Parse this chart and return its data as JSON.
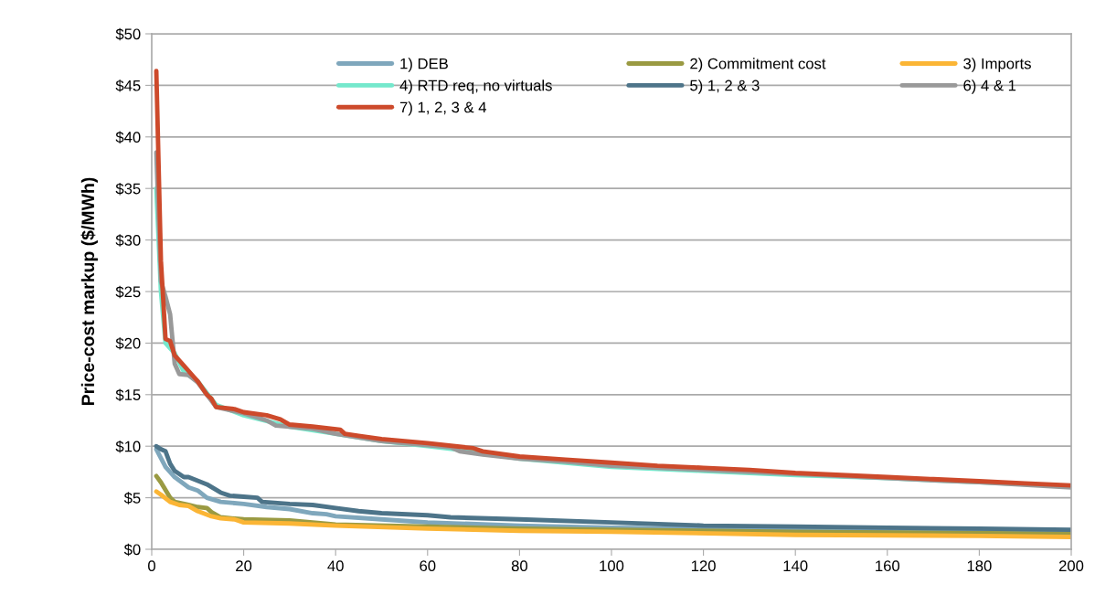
{
  "chart_data": {
    "type": "line",
    "ylabel": "Price-cost markup ($/MWh)",
    "xlim": [
      0,
      200
    ],
    "xticks": [
      0,
      20,
      40,
      60,
      80,
      100,
      120,
      140,
      160,
      180,
      200
    ],
    "ylim": [
      0,
      50
    ],
    "yticks": [
      {
        "value": 0,
        "label": "$0"
      },
      {
        "value": 5,
        "label": "$5"
      },
      {
        "value": 10,
        "label": "$10"
      },
      {
        "value": 15,
        "label": "$15"
      },
      {
        "value": 20,
        "label": "$20"
      },
      {
        "value": 25,
        "label": "$25"
      },
      {
        "value": 30,
        "label": "$30"
      },
      {
        "value": 35,
        "label": "$35"
      },
      {
        "value": 40,
        "label": "$40"
      },
      {
        "value": 45,
        "label": "$45"
      },
      {
        "value": 50,
        "label": "$50"
      }
    ],
    "grid": "y",
    "legend": "top",
    "marker": "none",
    "line_style": "solid",
    "series": [
      {
        "name": "1) DEB",
        "color": "#7fa7bc",
        "x": [
          1,
          3,
          5,
          8,
          10,
          12,
          15,
          20,
          25,
          30,
          35,
          38,
          40,
          50,
          60,
          80,
          100,
          120,
          140,
          160,
          180,
          200
        ],
        "values": [
          9.7,
          8.0,
          7.0,
          6.0,
          5.7,
          5.0,
          4.6,
          4.4,
          4.1,
          3.9,
          3.5,
          3.4,
          3.2,
          2.9,
          2.6,
          2.3,
          2.1,
          2.0,
          1.9,
          1.8,
          1.7,
          1.6
        ]
      },
      {
        "name": "2) Commitment cost",
        "color": "#9a9a42",
        "x": [
          1,
          2,
          4,
          5,
          8,
          10,
          12,
          13,
          15,
          20,
          30,
          40,
          60,
          80,
          100,
          140,
          200
        ],
        "values": [
          7.1,
          6.5,
          5.0,
          4.6,
          4.3,
          4.1,
          4.0,
          3.6,
          3.1,
          2.9,
          2.8,
          2.4,
          2.2,
          2.0,
          1.9,
          1.7,
          1.5
        ]
      },
      {
        "name": "3) Imports",
        "color": "#fbb535",
        "x": [
          1,
          2,
          4,
          6,
          8,
          10,
          13,
          15,
          18,
          20,
          30,
          40,
          60,
          80,
          100,
          140,
          180,
          200
        ],
        "values": [
          5.6,
          5.3,
          4.6,
          4.3,
          4.2,
          3.7,
          3.2,
          3.0,
          2.9,
          2.6,
          2.5,
          2.3,
          2.0,
          1.8,
          1.7,
          1.4,
          1.3,
          1.2
        ]
      },
      {
        "name": "4) RTD req, no virtuals",
        "color": "#74e8cc",
        "x": [
          1,
          2,
          3,
          5,
          7,
          10,
          14,
          20,
          30,
          40,
          50,
          60,
          70,
          80,
          90,
          100,
          120,
          140,
          160,
          180,
          200
        ],
        "values": [
          35,
          25,
          20,
          19,
          17.2,
          16.3,
          14,
          13,
          11.9,
          11.2,
          10.5,
          10,
          9.5,
          8.8,
          8.4,
          8.0,
          7.6,
          7.2,
          6.9,
          6.5,
          6.1
        ]
      },
      {
        "name": "5) 1, 2 & 3",
        "color": "#4d7489",
        "x": [
          1,
          2,
          3,
          4,
          5,
          7,
          8,
          12,
          15,
          17,
          20,
          23,
          24,
          30,
          35,
          40,
          45,
          50,
          60,
          65,
          80,
          100,
          120,
          140,
          160,
          180,
          200
        ],
        "values": [
          10,
          9.7,
          9.5,
          8.3,
          7.6,
          7.0,
          7.0,
          6.3,
          5.5,
          5.2,
          5.1,
          5.0,
          4.6,
          4.4,
          4.3,
          4.0,
          3.7,
          3.5,
          3.3,
          3.1,
          2.9,
          2.6,
          2.3,
          2.2,
          2.1,
          2.0,
          1.9
        ]
      },
      {
        "name": "6) 4 & 1",
        "color": "#999999",
        "x": [
          1,
          2,
          3,
          4,
          5,
          6,
          8,
          10,
          12,
          14,
          20,
          25,
          27,
          35,
          40,
          50,
          60,
          65,
          67,
          72,
          80,
          90,
          100,
          120,
          140,
          160,
          180,
          200
        ],
        "values": [
          38.5,
          26,
          24.5,
          22.8,
          18,
          17,
          16.9,
          16.2,
          15,
          13.8,
          13.2,
          12.5,
          12,
          11.7,
          11.2,
          10.5,
          10.1,
          9.9,
          9.5,
          9.2,
          8.8,
          8.5,
          8.1,
          7.7,
          7.3,
          6.9,
          6.5,
          6.0
        ]
      },
      {
        "name": "7) 1, 2, 3 & 4",
        "color": "#cd4a2b",
        "x": [
          1,
          2,
          3,
          4,
          5,
          7,
          9,
          10,
          12,
          13,
          14,
          18,
          20,
          25,
          28,
          30,
          35,
          41,
          42,
          45,
          50,
          55,
          60,
          70,
          72,
          80,
          90,
          100,
          110,
          120,
          130,
          140,
          150,
          160,
          170,
          180,
          190,
          200
        ],
        "values": [
          46.4,
          28,
          20.4,
          20.2,
          18.8,
          17.8,
          16.8,
          16.3,
          15,
          14.6,
          13.8,
          13.6,
          13.3,
          13,
          12.6,
          12.1,
          11.9,
          11.6,
          11.2,
          11,
          10.7,
          10.5,
          10.3,
          9.8,
          9.5,
          9.0,
          8.7,
          8.4,
          8.1,
          7.9,
          7.7,
          7.4,
          7.2,
          7.0,
          6.8,
          6.6,
          6.4,
          6.2
        ]
      }
    ]
  }
}
